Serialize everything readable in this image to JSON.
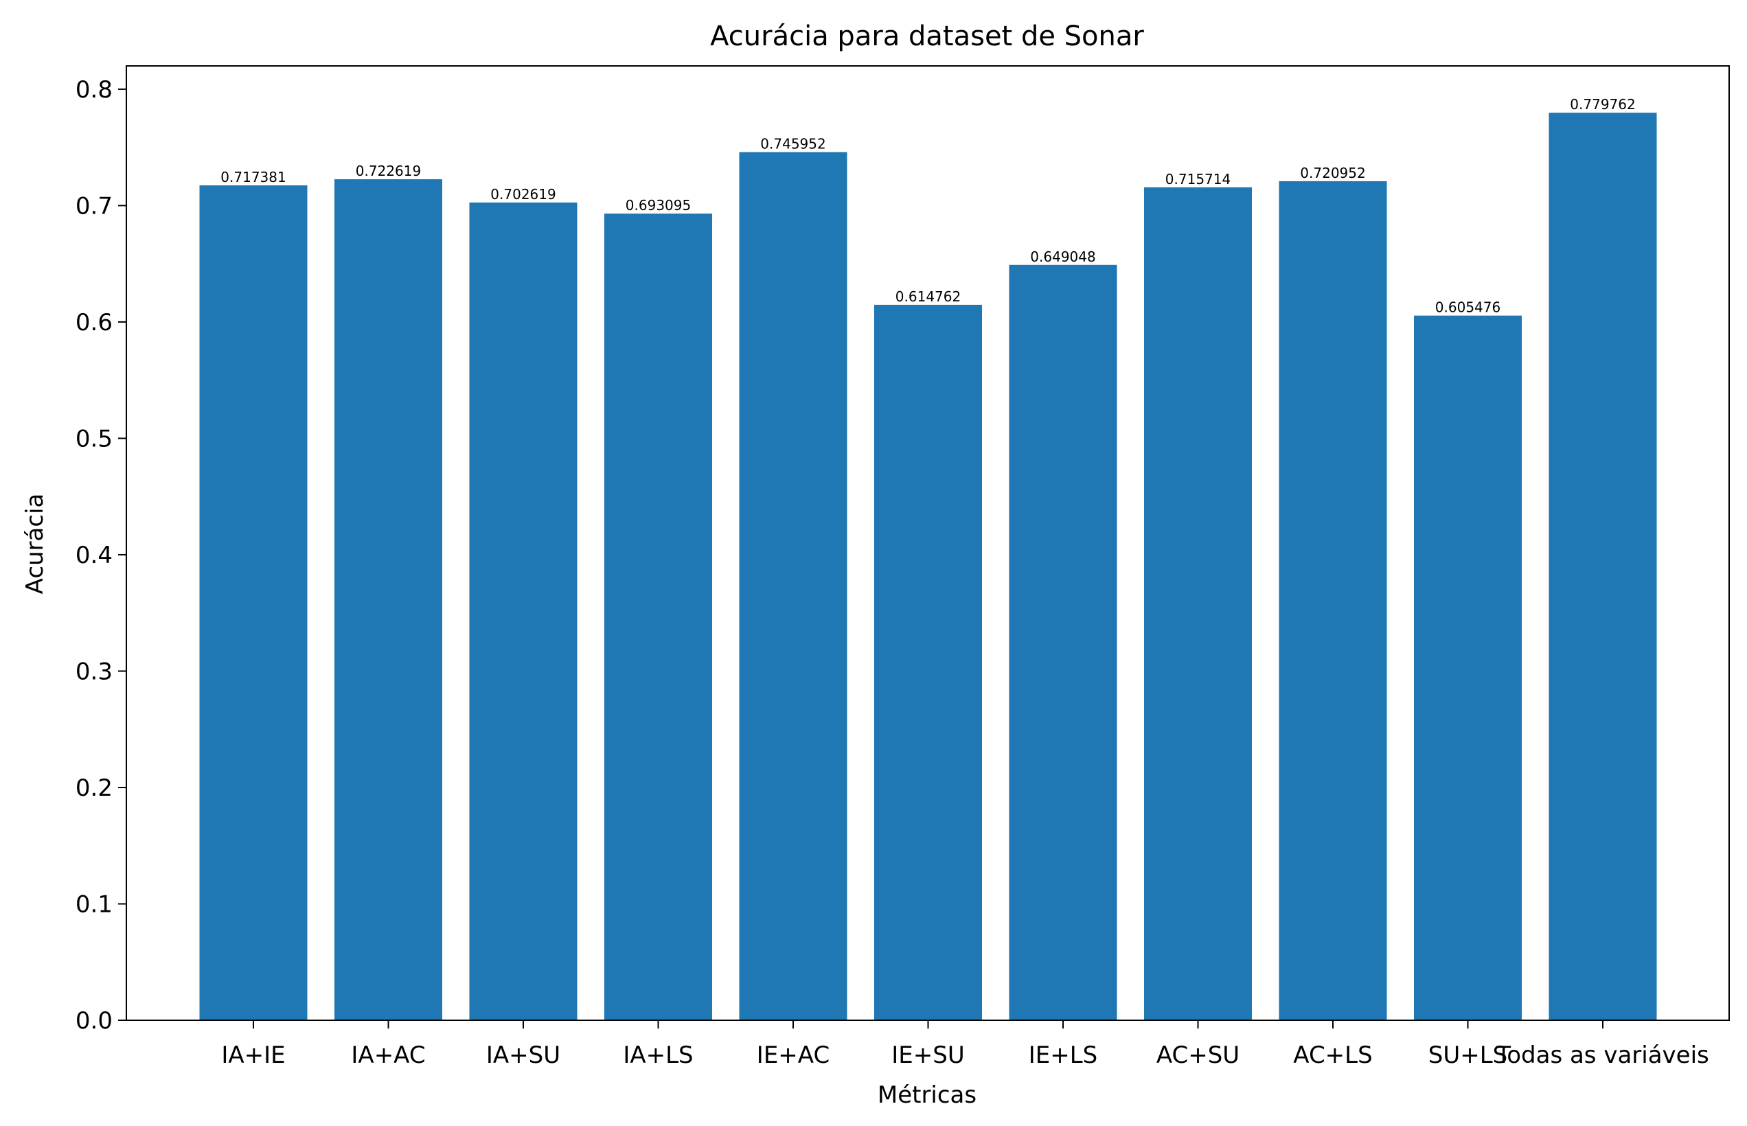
{
  "chart_data": {
    "type": "bar",
    "title": "Acurácia para dataset de Sonar",
    "xlabel": "Métricas",
    "ylabel": "Acurácia",
    "categories": [
      "IA+IE",
      "IA+AC",
      "IA+SU",
      "IA+LS",
      "IE+AC",
      "IE+SU",
      "IE+LS",
      "AC+SU",
      "AC+LS",
      "SU+LS",
      "Todas as variáveis"
    ],
    "values": [
      0.717381,
      0.722619,
      0.702619,
      0.693095,
      0.745952,
      0.614762,
      0.649048,
      0.715714,
      0.720952,
      0.605476,
      0.779762
    ],
    "value_labels": [
      "0.717381",
      "0.722619",
      "0.702619",
      "0.693095",
      "0.745952",
      "0.614762",
      "0.649048",
      "0.715714",
      "0.720952",
      "0.605476",
      "0.779762"
    ],
    "ylim": [
      0,
      0.82
    ],
    "yticks": [
      "0.0",
      "0.1",
      "0.2",
      "0.3",
      "0.4",
      "0.5",
      "0.6",
      "0.7",
      "0.8"
    ],
    "grid": false,
    "bar_color": "#1f77b4"
  }
}
